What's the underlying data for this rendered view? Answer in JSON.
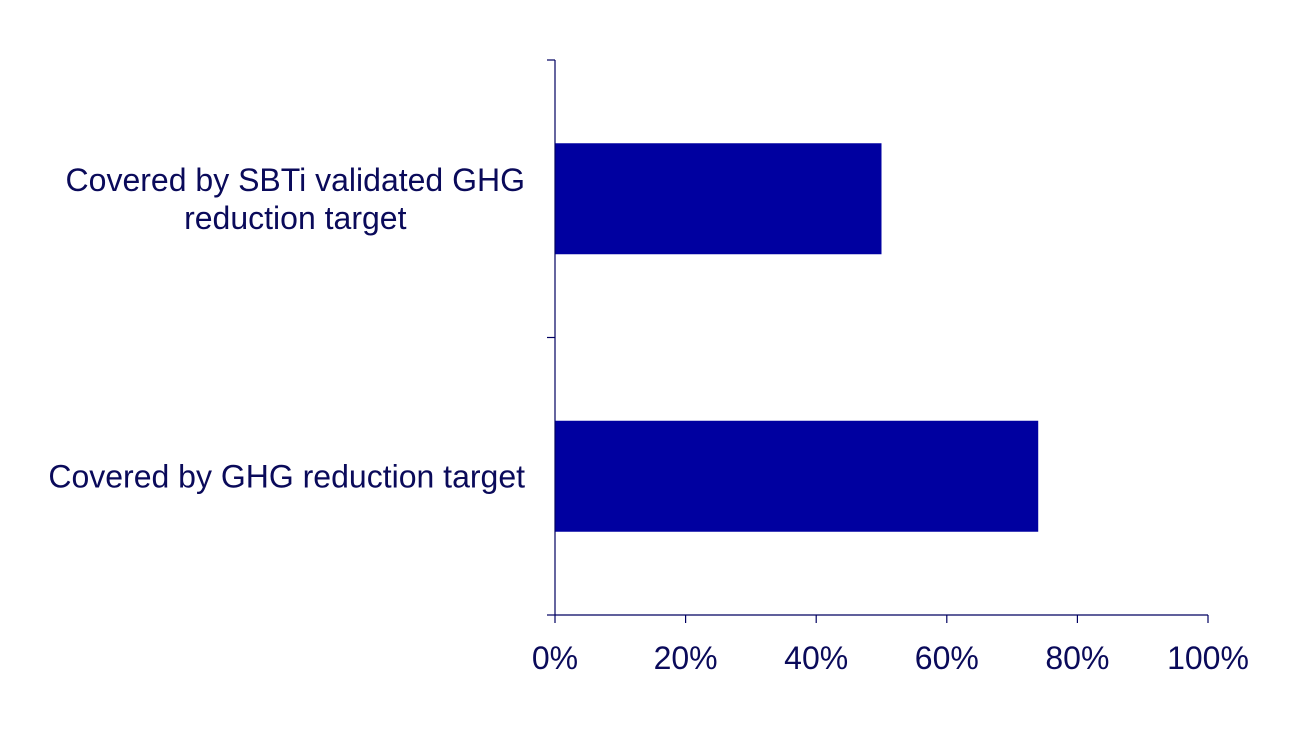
{
  "chart_data": {
    "type": "bar",
    "orientation": "horizontal",
    "categories": [
      [
        "Covered by SBTi validated GHG",
        "reduction target"
      ],
      [
        "Covered by GHG reduction target"
      ]
    ],
    "values": [
      50,
      74
    ],
    "xlim": [
      0,
      100
    ],
    "xticks": [
      0,
      20,
      40,
      60,
      80,
      100
    ],
    "xtick_labels": [
      "0%",
      "20%",
      "40%",
      "60%",
      "80%",
      "100%"
    ],
    "grid": false,
    "legend": "none",
    "colors": {
      "bar": "#0000A0",
      "axis": "#000060",
      "text": "#0A0A5A"
    }
  }
}
